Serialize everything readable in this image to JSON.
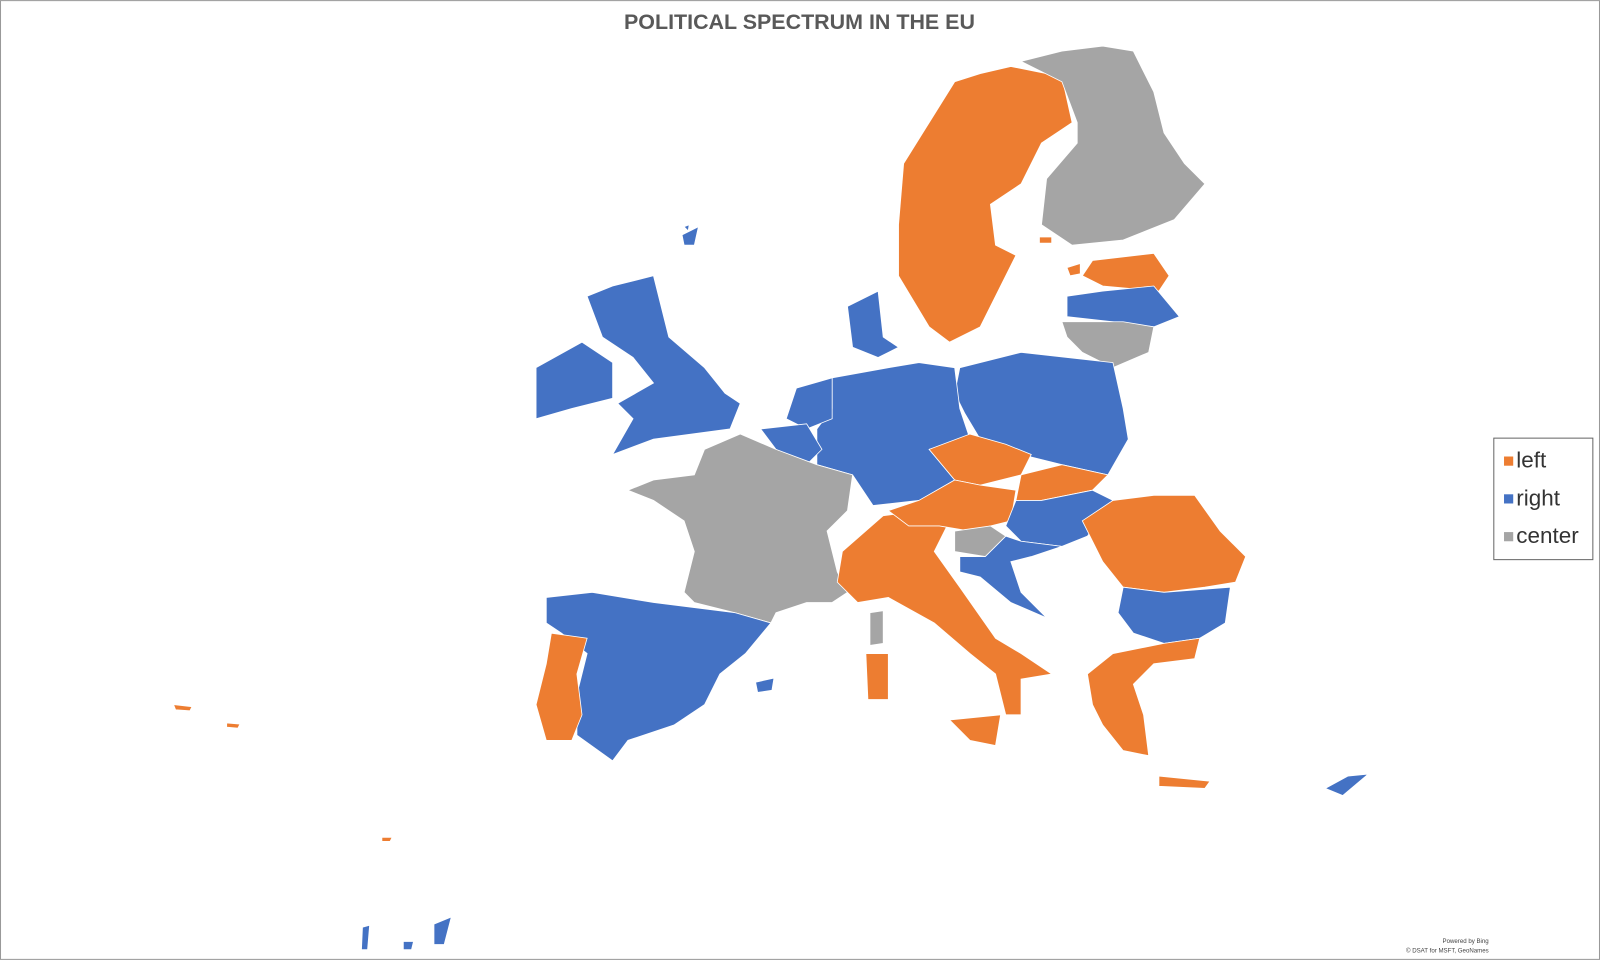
{
  "chart_data": {
    "type": "choropleth",
    "title": "POLITICAL SPECTRUM IN THE EU",
    "legend": {
      "position": "right",
      "items": [
        {
          "name": "left",
          "color": "#ed7d31"
        },
        {
          "name": "right",
          "color": "#4472c4"
        },
        {
          "name": "center",
          "color": "#a5a5a5"
        }
      ]
    },
    "regions": [
      "left",
      "center",
      "left",
      "right",
      "center",
      "right",
      "right",
      "right",
      "right",
      "right",
      "center",
      "right",
      "left",
      "right",
      "right",
      "left",
      "left",
      "left",
      "center",
      "left",
      "left",
      "left",
      "right",
      "center",
      "right",
      "left",
      "right",
      "left",
      "left",
      "right",
      "right",
      "right",
      "left",
      "left",
      "left",
      "right"
    ],
    "attribution": [
      "Powered by Bing",
      "© DSAT for MSFT, GeoNames"
    ]
  }
}
